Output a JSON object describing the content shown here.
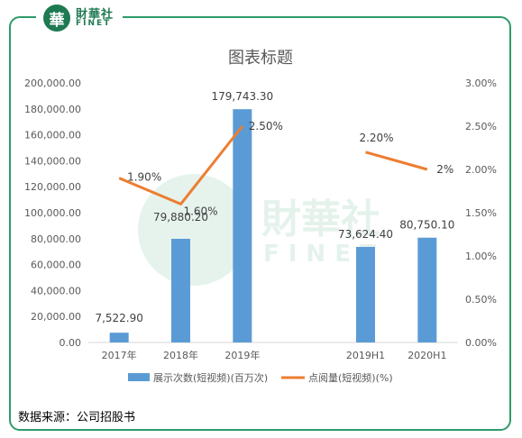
{
  "brand": {
    "cn": "財華社",
    "en": "FINET",
    "logo_char": "華"
  },
  "watermark": {
    "cn": "財華社",
    "en": "FINET"
  },
  "footer": {
    "source": "数据来源：公司招股书"
  },
  "colors": {
    "bar": "#5b9bd5",
    "line": "#ed7d31",
    "frame": "#2f9a6a",
    "axis_text": "#595959"
  },
  "chart_data": {
    "type": "bar",
    "title": "图表标题",
    "categories": [
      "2017年",
      "2018年",
      "2019年",
      "",
      "2019H1",
      "2020H1"
    ],
    "series": [
      {
        "name": "展示次数(短视频)(百万次)",
        "type": "bar",
        "axis": "left",
        "values": [
          7522.9,
          79880.2,
          179743.3,
          null,
          73624.4,
          80750.1
        ],
        "labels": [
          "7,522.90",
          "79,880.20",
          "179,743.30",
          "",
          "73,624.40",
          "80,750.10"
        ]
      },
      {
        "name": "点阅量(短视频)(%)",
        "type": "line",
        "axis": "right",
        "values": [
          1.9,
          1.6,
          2.5,
          null,
          2.2,
          2.0
        ],
        "labels": [
          "1.90%",
          "1.60%",
          "2.50%",
          "",
          "2.20%",
          "2%"
        ]
      }
    ],
    "y_left": {
      "ylim": [
        0,
        200000
      ],
      "ticks": [
        "0.00",
        "20,000.00",
        "40,000.00",
        "60,000.00",
        "80,000.00",
        "100,000.00",
        "120,000.00",
        "140,000.00",
        "160,000.00",
        "180,000.00",
        "200,000.00"
      ]
    },
    "y_right": {
      "ylim": [
        0,
        3
      ],
      "ticks": [
        "0.00%",
        "0.50%",
        "1.00%",
        "1.50%",
        "2.00%",
        "2.50%",
        "3.00%"
      ]
    },
    "grid": false,
    "legend": "bottom"
  }
}
